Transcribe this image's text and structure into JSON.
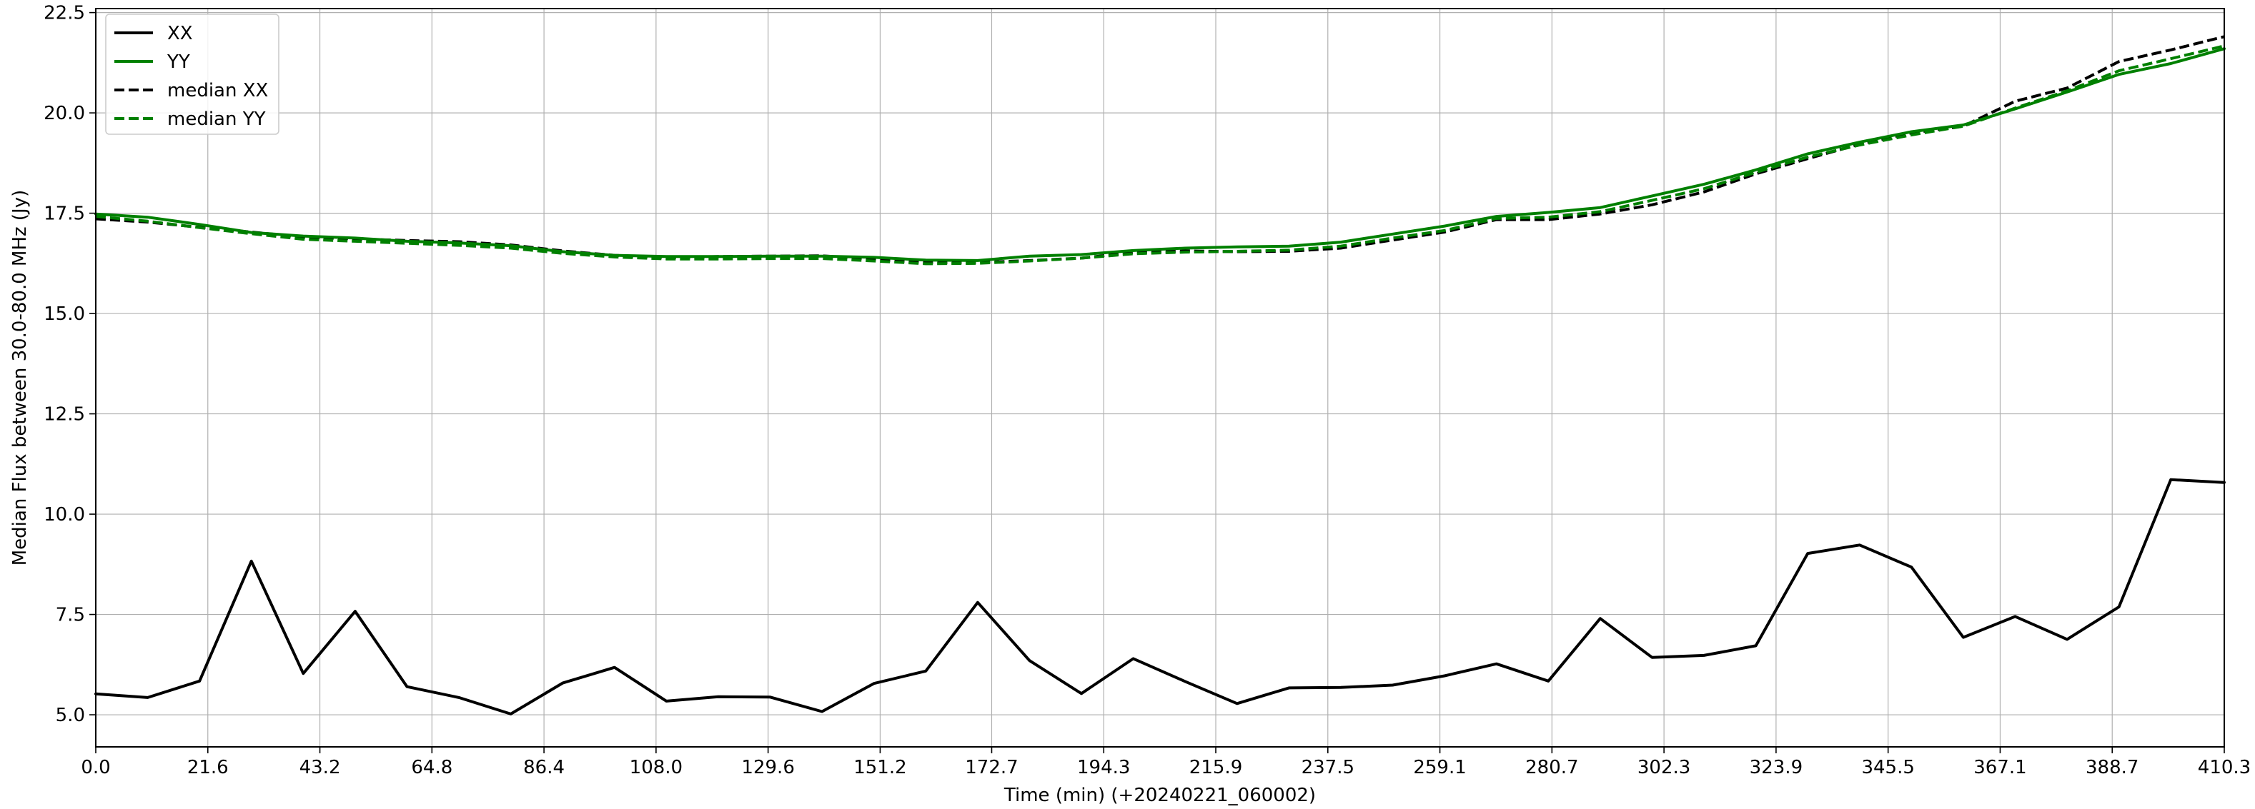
{
  "chart_data": {
    "type": "line",
    "title": "",
    "xlabel": "Time (min) (+20240221_060002)",
    "ylabel": "Median Flux between 30.0-80.0 MHz  (Jy)",
    "xlim": [
      0,
      410.3
    ],
    "ylim": [
      4.2,
      22.6
    ],
    "grid": true,
    "legend_position": "top-left",
    "x_ticks": [
      0.0,
      21.6,
      43.2,
      64.8,
      86.4,
      108.0,
      129.6,
      151.2,
      172.7,
      194.3,
      215.9,
      237.5,
      259.1,
      280.7,
      302.3,
      323.9,
      345.5,
      367.1,
      388.7,
      410.3
    ],
    "x_tick_labels": [
      "0.0",
      "21.6",
      "43.2",
      "64.8",
      "86.4",
      "108.0",
      "129.6",
      "151.2",
      "172.7",
      "194.3",
      "215.9",
      "237.5",
      "259.1",
      "280.7",
      "302.3",
      "323.9",
      "345.5",
      "367.1",
      "388.7",
      "410.3"
    ],
    "y_ticks": [
      5.0,
      7.5,
      10.0,
      12.5,
      15.0,
      17.5,
      20.0,
      22.5
    ],
    "y_tick_labels": [
      "5.0",
      "7.5",
      "10.0",
      "12.5",
      "15.0",
      "17.5",
      "20.0",
      "22.5"
    ],
    "x": [
      0.0,
      10.0,
      20.0,
      30.0,
      40.0,
      50.0,
      60.0,
      70.0,
      80.0,
      90.0,
      100.0,
      110.0,
      120.0,
      130.0,
      140.0,
      150.0,
      160.0,
      170.0,
      180.0,
      190.0,
      200.0,
      210.0,
      220.0,
      230.0,
      240.0,
      250.0,
      260.0,
      270.0,
      280.0,
      290.0,
      300.0,
      310.0,
      320.0,
      330.0,
      340.0,
      350.0,
      360.0,
      370.0,
      380.0,
      390.0,
      400.0,
      410.3
    ],
    "series": [
      {
        "name": "XX",
        "color": "#000000",
        "style": "solid",
        "values": [
          5.52,
          5.43,
          5.84,
          8.83,
          6.03,
          7.58,
          5.7,
          5.43,
          5.02,
          5.79,
          6.18,
          5.34,
          5.45,
          5.44,
          5.08,
          5.78,
          6.09,
          7.8,
          6.35,
          5.53,
          6.4,
          5.83,
          5.28,
          5.67,
          5.68,
          5.74,
          5.97,
          6.27,
          5.84,
          7.4,
          6.43,
          6.48,
          6.72,
          9.02,
          9.23,
          8.68,
          6.93,
          7.45,
          6.88,
          7.69,
          10.86,
          10.79
        ]
      },
      {
        "name": "YY",
        "color": "#008000",
        "style": "solid",
        "values": [
          17.48,
          17.4,
          17.22,
          17.02,
          16.93,
          16.88,
          16.8,
          16.76,
          16.69,
          16.54,
          16.45,
          16.42,
          16.42,
          16.43,
          16.43,
          16.4,
          16.33,
          16.32,
          16.43,
          16.47,
          16.57,
          16.63,
          16.66,
          16.68,
          16.78,
          16.98,
          17.18,
          17.42,
          17.52,
          17.64,
          17.93,
          18.22,
          18.58,
          18.98,
          19.27,
          19.53,
          19.7,
          20.1,
          20.52,
          20.96,
          21.23,
          21.6
        ]
      },
      {
        "name": "median XX",
        "color": "#000000",
        "style": "dashed",
        "values": [
          17.36,
          17.28,
          17.15,
          17.03,
          16.9,
          16.86,
          16.82,
          16.79,
          16.71,
          16.56,
          16.45,
          16.39,
          16.42,
          16.43,
          16.44,
          16.35,
          16.27,
          16.27,
          16.32,
          16.38,
          16.52,
          16.56,
          16.54,
          16.55,
          16.63,
          16.83,
          17.03,
          17.34,
          17.34,
          17.48,
          17.71,
          18.03,
          18.48,
          18.86,
          19.22,
          19.5,
          19.67,
          20.29,
          20.62,
          21.28,
          21.57,
          21.9
        ]
      },
      {
        "name": "median YY",
        "color": "#008000",
        "style": "dashed",
        "values": [
          17.42,
          17.3,
          17.14,
          16.99,
          16.85,
          16.8,
          16.75,
          16.7,
          16.63,
          16.5,
          16.41,
          16.36,
          16.36,
          16.37,
          16.37,
          16.31,
          16.24,
          16.25,
          16.31,
          16.38,
          16.49,
          16.53,
          16.55,
          16.58,
          16.68,
          16.88,
          17.07,
          17.37,
          17.4,
          17.54,
          17.82,
          18.11,
          18.52,
          18.9,
          19.2,
          19.45,
          19.67,
          20.12,
          20.55,
          21.05,
          21.35,
          21.67
        ]
      }
    ]
  }
}
